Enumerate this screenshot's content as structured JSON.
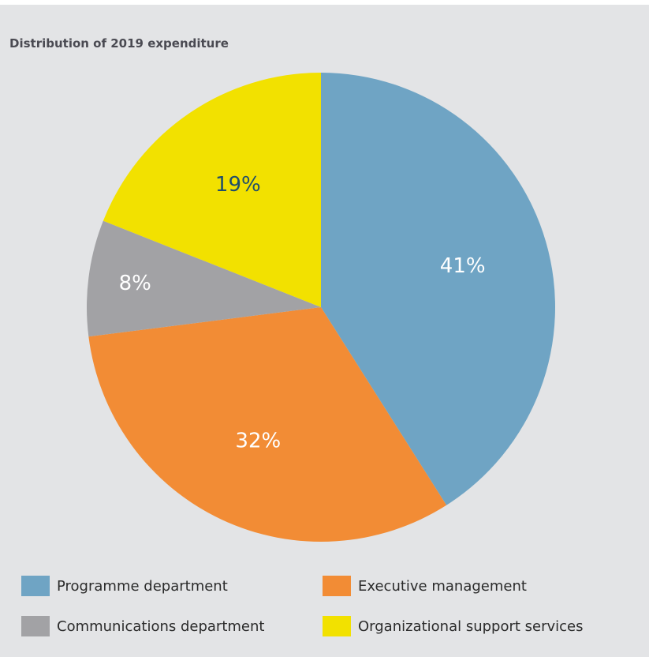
{
  "chart_data": {
    "type": "pie",
    "title": "Distribution of 2019 expenditure",
    "slices": [
      {
        "label": "Programme department",
        "value": 41,
        "display": "41%",
        "color": "#6fa4c4",
        "label_color": "#ffffff"
      },
      {
        "label": "Executive management",
        "value": 32,
        "display": "32%",
        "color": "#f28c35",
        "label_color": "#ffffff"
      },
      {
        "label": "Communications department",
        "value": 8,
        "display": "8%",
        "color": "#a2a2a5",
        "label_color": "#ffffff"
      },
      {
        "label": "Organizational support services",
        "value": 19,
        "display": "19%",
        "color": "#f2e100",
        "label_color": "#1f4e6b"
      }
    ],
    "start": "12 o'clock",
    "direction": "clockwise",
    "legend_position": "bottom"
  }
}
